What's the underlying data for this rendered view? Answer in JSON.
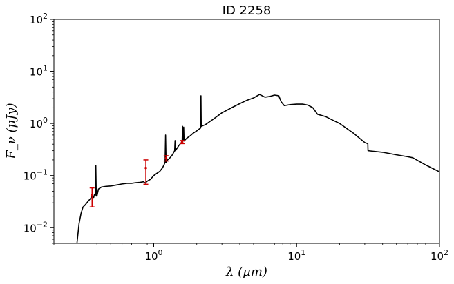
{
  "chart_data": {
    "type": "line",
    "title": "ID 2258",
    "xlabel": "λ (μm)",
    "ylabel": "F_ν (μJy)",
    "x_scale": "log",
    "y_scale": "log",
    "xlim": [
      0.2,
      100
    ],
    "ylim": [
      0.005,
      100
    ],
    "x_ticks": [
      {
        "value": 1,
        "base": "10",
        "exp": "0"
      },
      {
        "value": 10,
        "base": "10",
        "exp": "1"
      },
      {
        "value": 100,
        "base": "10",
        "exp": "2"
      }
    ],
    "y_ticks": [
      {
        "value": 0.01,
        "base": "10",
        "exp": "−2"
      },
      {
        "value": 0.1,
        "base": "10",
        "exp": "−1"
      },
      {
        "value": 1,
        "base": "10",
        "exp": "0"
      },
      {
        "value": 10,
        "base": "10",
        "exp": "1"
      },
      {
        "value": 100,
        "base": "10",
        "exp": "2"
      }
    ],
    "grid": false,
    "series": [
      {
        "kind": "model-sed",
        "color": "#000000",
        "points": [
          [
            0.29,
            0.005
          ],
          [
            0.3,
            0.012
          ],
          [
            0.31,
            0.019
          ],
          [
            0.32,
            0.025
          ],
          [
            0.33,
            0.027
          ],
          [
            0.34,
            0.03
          ],
          [
            0.35,
            0.033
          ],
          [
            0.36,
            0.036
          ],
          [
            0.37,
            0.04
          ],
          [
            0.38,
            0.038
          ],
          [
            0.385,
            0.044
          ],
          [
            0.39,
            0.042
          ],
          [
            0.393,
            0.155
          ],
          [
            0.396,
            0.042
          ],
          [
            0.4,
            0.04
          ],
          [
            0.41,
            0.055
          ],
          [
            0.43,
            0.06
          ],
          [
            0.46,
            0.062
          ],
          [
            0.5,
            0.063
          ],
          [
            0.55,
            0.066
          ],
          [
            0.6,
            0.069
          ],
          [
            0.65,
            0.071
          ],
          [
            0.7,
            0.071
          ],
          [
            0.75,
            0.073
          ],
          [
            0.8,
            0.074
          ],
          [
            0.85,
            0.076
          ],
          [
            0.87,
            0.072
          ],
          [
            0.9,
            0.078
          ],
          [
            0.95,
            0.085
          ],
          [
            1.0,
            0.1
          ],
          [
            1.05,
            0.11
          ],
          [
            1.1,
            0.12
          ],
          [
            1.15,
            0.14
          ],
          [
            1.18,
            0.16
          ],
          [
            1.2,
            0.18
          ],
          [
            1.21,
            0.6
          ],
          [
            1.22,
            0.18
          ],
          [
            1.25,
            0.2
          ],
          [
            1.3,
            0.22
          ],
          [
            1.35,
            0.25
          ],
          [
            1.4,
            0.3
          ],
          [
            1.41,
            0.47
          ],
          [
            1.42,
            0.3
          ],
          [
            1.45,
            0.33
          ],
          [
            1.5,
            0.38
          ],
          [
            1.55,
            0.42
          ],
          [
            1.58,
            0.45
          ],
          [
            1.59,
            0.88
          ],
          [
            1.6,
            0.47
          ],
          [
            1.62,
            0.85
          ],
          [
            1.63,
            0.46
          ],
          [
            1.7,
            0.52
          ],
          [
            1.8,
            0.58
          ],
          [
            1.9,
            0.66
          ],
          [
            2.0,
            0.72
          ],
          [
            2.1,
            0.8
          ],
          [
            2.13,
            0.82
          ],
          [
            2.14,
            3.4
          ],
          [
            2.15,
            0.88
          ],
          [
            2.3,
            0.95
          ],
          [
            2.6,
            1.2
          ],
          [
            3.0,
            1.6
          ],
          [
            3.5,
            2.0
          ],
          [
            4.0,
            2.4
          ],
          [
            4.5,
            2.8
          ],
          [
            5.0,
            3.1
          ],
          [
            5.5,
            3.6
          ],
          [
            6.0,
            3.2
          ],
          [
            6.5,
            3.3
          ],
          [
            7.0,
            3.5
          ],
          [
            7.5,
            3.4
          ],
          [
            7.8,
            2.6
          ],
          [
            8.2,
            2.2
          ],
          [
            9.0,
            2.3
          ],
          [
            10.0,
            2.35
          ],
          [
            11.0,
            2.35
          ],
          [
            12.0,
            2.25
          ],
          [
            13.0,
            2.0
          ],
          [
            14.0,
            1.5
          ],
          [
            16.0,
            1.35
          ],
          [
            18.0,
            1.15
          ],
          [
            20.0,
            1.0
          ],
          [
            25.0,
            0.65
          ],
          [
            30.0,
            0.43
          ],
          [
            31.5,
            0.41
          ],
          [
            31.6,
            0.3
          ],
          [
            40.0,
            0.28
          ],
          [
            50.0,
            0.25
          ],
          [
            60.0,
            0.23
          ],
          [
            65.0,
            0.22
          ],
          [
            80.0,
            0.16
          ],
          [
            100.0,
            0.118
          ]
        ]
      },
      {
        "kind": "photometry",
        "color": "#cc0000",
        "points": [
          {
            "x": 0.37,
            "y": 0.042,
            "ylo": 0.025,
            "yhi": 0.058
          },
          {
            "x": 0.88,
            "y": 0.14,
            "ylo": 0.068,
            "yhi": 0.2
          },
          {
            "x": 1.22,
            "y": 0.215,
            "ylo": 0.19,
            "yhi": 0.24
          },
          {
            "x": 1.58,
            "y": 0.44,
            "ylo": 0.41,
            "yhi": 0.47
          }
        ]
      }
    ]
  }
}
